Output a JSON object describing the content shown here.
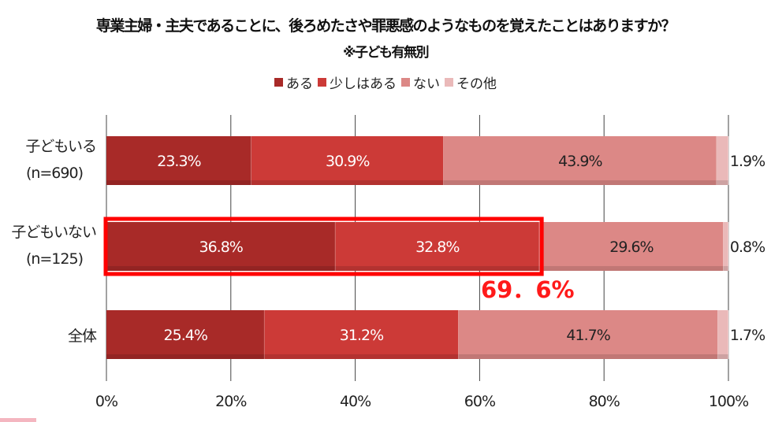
{
  "title": "専業主婦・主夫であることに、後ろめたさや罪悪感のようなものを覚えたことはありますか？",
  "subtitle": "※子ども有無別",
  "callout": {
    "text": "69．6%",
    "color": "#ff1a1a"
  },
  "colors": {
    "highlight_box": "#ff0000"
  },
  "chart_data": {
    "type": "bar",
    "orientation": "horizontal",
    "stacked": true,
    "title": "専業主婦・主夫であることに、後ろめたさや罪悪感のようなものを覚えたことはありますか？",
    "subtitle": "※子ども有無別",
    "categories": [
      {
        "line1": "子どもいる",
        "line2": "(n=690)"
      },
      {
        "line1": "子どもいない",
        "line2": "(n=125)"
      },
      {
        "line1": "全体",
        "line2": ""
      }
    ],
    "series": [
      {
        "name": "ある",
        "color": "#a82a28",
        "label_color": "#ffffff",
        "values": [
          23.3,
          36.8,
          25.4
        ]
      },
      {
        "name": "少しはある",
        "color": "#cc3a37",
        "label_color": "#ffffff",
        "values": [
          30.9,
          32.8,
          31.2
        ]
      },
      {
        "name": "ない",
        "color": "#dc8886",
        "label_color": "#222222",
        "values": [
          43.9,
          29.6,
          41.7
        ]
      },
      {
        "name": "その他",
        "color": "#eab9b9",
        "label_color": "#222222",
        "values": [
          1.9,
          0.8,
          1.7
        ]
      }
    ],
    "data_labels": [
      [
        "23.3%",
        "30.9%",
        "43.9%",
        "1.9%"
      ],
      [
        "36.8%",
        "32.8%",
        "29.6%",
        "0.8%"
      ],
      [
        "25.4%",
        "31.2%",
        "41.7%",
        "1.7%"
      ]
    ],
    "xlim": [
      0,
      100
    ],
    "xticks": [
      0,
      20,
      40,
      60,
      80,
      100
    ],
    "xtick_labels": [
      "0%",
      "20%",
      "40%",
      "60%",
      "80%",
      "100%"
    ],
    "grid": true,
    "legend_position": "top",
    "highlight": {
      "category_index": 1,
      "series_indices": [
        0,
        1
      ]
    }
  }
}
